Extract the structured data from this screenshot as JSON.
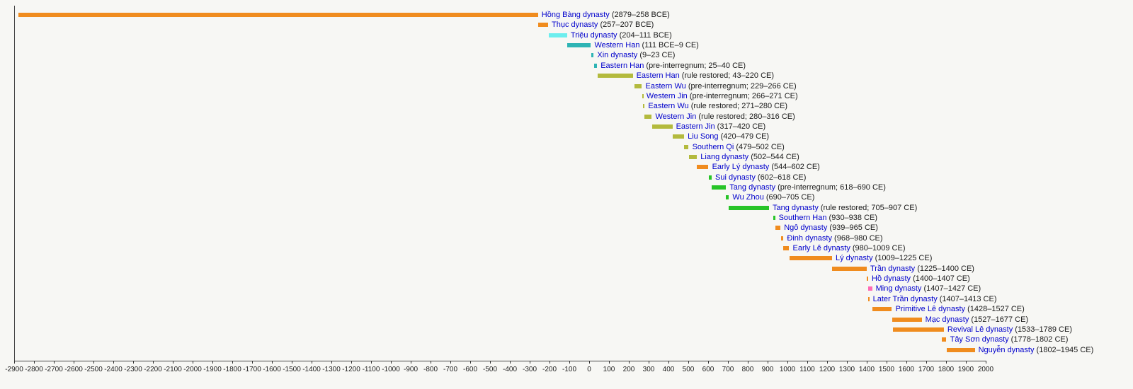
{
  "chart_data": {
    "type": "timeline",
    "title": "",
    "axis": {
      "min": -2900,
      "max": 2000,
      "tick_step": 100,
      "ticks": [
        -2900,
        -2800,
        -2700,
        -2600,
        -2500,
        -2400,
        -2300,
        -2200,
        -2100,
        -2000,
        -1900,
        -1800,
        -1700,
        -1600,
        -1500,
        -1400,
        -1300,
        -1200,
        -1100,
        -1000,
        -900,
        -800,
        -700,
        -600,
        -500,
        -400,
        -300,
        -200,
        -100,
        0,
        100,
        200,
        300,
        400,
        500,
        600,
        700,
        800,
        900,
        1000,
        1100,
        1200,
        1300,
        1400,
        1500,
        1600,
        1700,
        1800,
        1900,
        2000
      ]
    },
    "colors": {
      "orange": "#f08c1e",
      "cyan": "#6ceeee",
      "teal": "#2eb4b4",
      "olive": "#b3ba3d",
      "green": "#27c427",
      "pink": "#ff69b4"
    },
    "rows": [
      {
        "name": "Hồng Bàng dynasty",
        "detail": "(2879–258 BCE)",
        "start": -2879,
        "end": -258,
        "color": "orange"
      },
      {
        "name": "Thục dynasty",
        "detail": "(257–207 BCE)",
        "start": -257,
        "end": -207,
        "color": "orange"
      },
      {
        "name": "Triệu dynasty",
        "detail": "(204–111 BCE)",
        "start": -204,
        "end": -111,
        "color": "cyan"
      },
      {
        "name": "Western Han",
        "detail": "(111 BCE–9 CE)",
        "start": -111,
        "end": 9,
        "color": "teal"
      },
      {
        "name": "Xin dynasty",
        "detail": "(9–23 CE)",
        "start": 9,
        "end": 23,
        "color": "teal"
      },
      {
        "name": "Eastern Han",
        "detail": "(pre-interregnum; 25–40 CE)",
        "start": 25,
        "end": 40,
        "color": "teal"
      },
      {
        "name": "Eastern Han",
        "detail": "(rule restored; 43–220 CE)",
        "start": 43,
        "end": 220,
        "color": "olive"
      },
      {
        "name": "Eastern Wu",
        "detail": "(pre-interregnum; 229–266 CE)",
        "start": 229,
        "end": 266,
        "color": "olive"
      },
      {
        "name": "Western Jin",
        "detail": "(pre-interregnum; 266–271 CE)",
        "start": 266,
        "end": 271,
        "color": "olive"
      },
      {
        "name": "Eastern Wu",
        "detail": "(rule restored; 271–280 CE)",
        "start": 271,
        "end": 280,
        "color": "olive"
      },
      {
        "name": "Western Jin",
        "detail": "(rule restored; 280–316 CE)",
        "start": 280,
        "end": 316,
        "color": "olive"
      },
      {
        "name": "Eastern Jin",
        "detail": "(317–420 CE)",
        "start": 317,
        "end": 420,
        "color": "olive"
      },
      {
        "name": "Liu Song",
        "detail": "(420–479 CE)",
        "start": 420,
        "end": 479,
        "color": "olive"
      },
      {
        "name": "Southern Qi",
        "detail": "(479–502 CE)",
        "start": 479,
        "end": 502,
        "color": "olive"
      },
      {
        "name": "Liang dynasty",
        "detail": "(502–544 CE)",
        "start": 502,
        "end": 544,
        "color": "olive"
      },
      {
        "name": "Early Lý dynasty",
        "detail": "(544–602 CE)",
        "start": 544,
        "end": 602,
        "color": "orange"
      },
      {
        "name": "Sui dynasty",
        "detail": "(602–618 CE)",
        "start": 602,
        "end": 618,
        "color": "green"
      },
      {
        "name": "Tang dynasty",
        "detail": "(pre-interregnum; 618–690 CE)",
        "start": 618,
        "end": 690,
        "color": "green"
      },
      {
        "name": "Wu Zhou",
        "detail": "(690–705 CE)",
        "start": 690,
        "end": 705,
        "color": "green"
      },
      {
        "name": "Tang dynasty",
        "detail": "(rule restored; 705–907 CE)",
        "start": 705,
        "end": 907,
        "color": "green"
      },
      {
        "name": "Southern Han",
        "detail": "(930–938 CE)",
        "start": 930,
        "end": 938,
        "color": "green"
      },
      {
        "name": "Ngô dynasty",
        "detail": "(939–965 CE)",
        "start": 939,
        "end": 965,
        "color": "orange"
      },
      {
        "name": "Đinh dynasty",
        "detail": "(968–980 CE)",
        "start": 968,
        "end": 980,
        "color": "orange"
      },
      {
        "name": "Early Lê dynasty",
        "detail": "(980–1009 CE)",
        "start": 980,
        "end": 1009,
        "color": "orange"
      },
      {
        "name": "Lý dynasty",
        "detail": "(1009–1225 CE)",
        "start": 1009,
        "end": 1225,
        "color": "orange"
      },
      {
        "name": "Trần dynasty",
        "detail": "(1225–1400 CE)",
        "start": 1225,
        "end": 1400,
        "color": "orange"
      },
      {
        "name": "Hồ dynasty",
        "detail": "(1400–1407 CE)",
        "start": 1400,
        "end": 1407,
        "color": "orange"
      },
      {
        "name": "Ming dynasty",
        "detail": "(1407–1427 CE)",
        "start": 1407,
        "end": 1427,
        "color": "pink"
      },
      {
        "name": "Later Trần dynasty",
        "detail": "(1407–1413 CE)",
        "start": 1407,
        "end": 1413,
        "color": "orange"
      },
      {
        "name": "Primitive Lê dynasty",
        "detail": "(1428–1527 CE)",
        "start": 1428,
        "end": 1527,
        "color": "orange"
      },
      {
        "name": "Mạc dynasty",
        "detail": "(1527–1677 CE)",
        "start": 1527,
        "end": 1677,
        "color": "orange"
      },
      {
        "name": "Revival Lê dynasty",
        "detail": "(1533–1789 CE)",
        "start": 1533,
        "end": 1789,
        "color": "orange"
      },
      {
        "name": "Tây Sơn dynasty",
        "detail": "(1778–1802 CE)",
        "start": 1778,
        "end": 1802,
        "color": "orange"
      },
      {
        "name": "Nguyễn dynasty",
        "detail": "(1802–1945 CE)",
        "start": 1802,
        "end": 1945,
        "color": "orange"
      }
    ]
  }
}
